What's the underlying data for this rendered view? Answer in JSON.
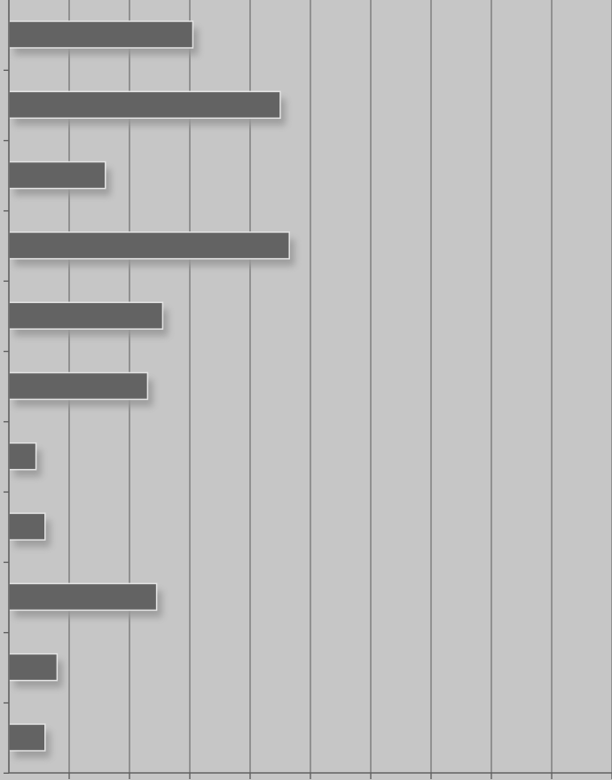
{
  "chart_data": {
    "type": "bar",
    "orientation": "horizontal",
    "title": "",
    "xlabel": "",
    "ylabel": "",
    "categories": [
      "",
      "",
      "",
      "",
      "",
      "",
      "",
      "",
      "",
      "",
      ""
    ],
    "values": [
      3.05,
      4.5,
      1.6,
      4.65,
      2.55,
      2.3,
      0.45,
      0.6,
      2.45,
      0.8,
      0.6
    ],
    "xlim": [
      0,
      10
    ],
    "x_tick_step": 1,
    "grid": true,
    "legend": "none",
    "colors": {
      "background": "#c6c6c6",
      "bar_fill": "#636363",
      "bar_highlight": "#e4e4e4",
      "bar_shadow": "#9a9a9a",
      "gridline": "#7a7a7a",
      "axis": "#606060"
    }
  }
}
